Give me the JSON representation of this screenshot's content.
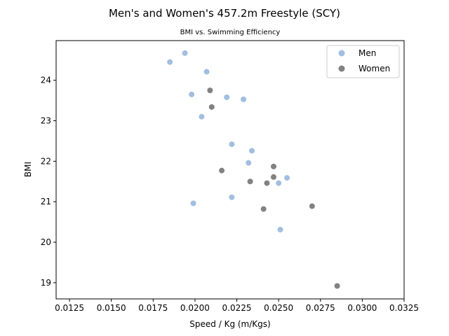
{
  "chart_data": {
    "type": "scatter",
    "title": "Men's and Women's 457.2m Freestyle (SCY)",
    "subtitle": "BMI vs. Swimming Efficiency",
    "xlabel": "Speed / Kg (m/Kgs)",
    "ylabel": "BMI",
    "xlim": [
      0.0117,
      0.0325
    ],
    "ylim": [
      18.6,
      24.98
    ],
    "x_ticks": [
      "0.0125",
      "0.0150",
      "0.0175",
      "0.0200",
      "0.0225",
      "0.0250",
      "0.0275",
      "0.0300",
      "0.0325"
    ],
    "x_tick_values": [
      0.0125,
      0.015,
      0.0175,
      0.02,
      0.0225,
      0.025,
      0.0275,
      0.03,
      0.0325
    ],
    "y_ticks": [
      "19",
      "20",
      "21",
      "22",
      "23",
      "24"
    ],
    "y_tick_values": [
      19,
      20,
      21,
      22,
      23,
      24
    ],
    "grid": false,
    "legend_position": "top-right",
    "series": [
      {
        "name": "Men",
        "color": "#7ba3d3",
        "points": [
          {
            "x": 0.0194,
            "y": 24.67
          },
          {
            "x": 0.0185,
            "y": 24.45
          },
          {
            "x": 0.0207,
            "y": 24.21
          },
          {
            "x": 0.0198,
            "y": 23.65
          },
          {
            "x": 0.0219,
            "y": 23.58
          },
          {
            "x": 0.0229,
            "y": 23.53
          },
          {
            "x": 0.0204,
            "y": 23.1
          },
          {
            "x": 0.0222,
            "y": 22.42
          },
          {
            "x": 0.0234,
            "y": 22.26
          },
          {
            "x": 0.0232,
            "y": 21.96
          },
          {
            "x": 0.0255,
            "y": 21.59
          },
          {
            "x": 0.025,
            "y": 21.46
          },
          {
            "x": 0.0222,
            "y": 21.11
          },
          {
            "x": 0.0199,
            "y": 20.96
          },
          {
            "x": 0.0251,
            "y": 20.31
          }
        ]
      },
      {
        "name": "Women",
        "color": "#4d4d4d",
        "points": [
          {
            "x": 0.0209,
            "y": 23.75
          },
          {
            "x": 0.021,
            "y": 23.34
          },
          {
            "x": 0.0247,
            "y": 21.87
          },
          {
            "x": 0.0216,
            "y": 21.77
          },
          {
            "x": 0.0247,
            "y": 21.61
          },
          {
            "x": 0.0233,
            "y": 21.5
          },
          {
            "x": 0.0243,
            "y": 21.46
          },
          {
            "x": 0.027,
            "y": 20.89
          },
          {
            "x": 0.0241,
            "y": 20.82
          },
          {
            "x": 0.0285,
            "y": 18.92
          }
        ]
      }
    ]
  }
}
